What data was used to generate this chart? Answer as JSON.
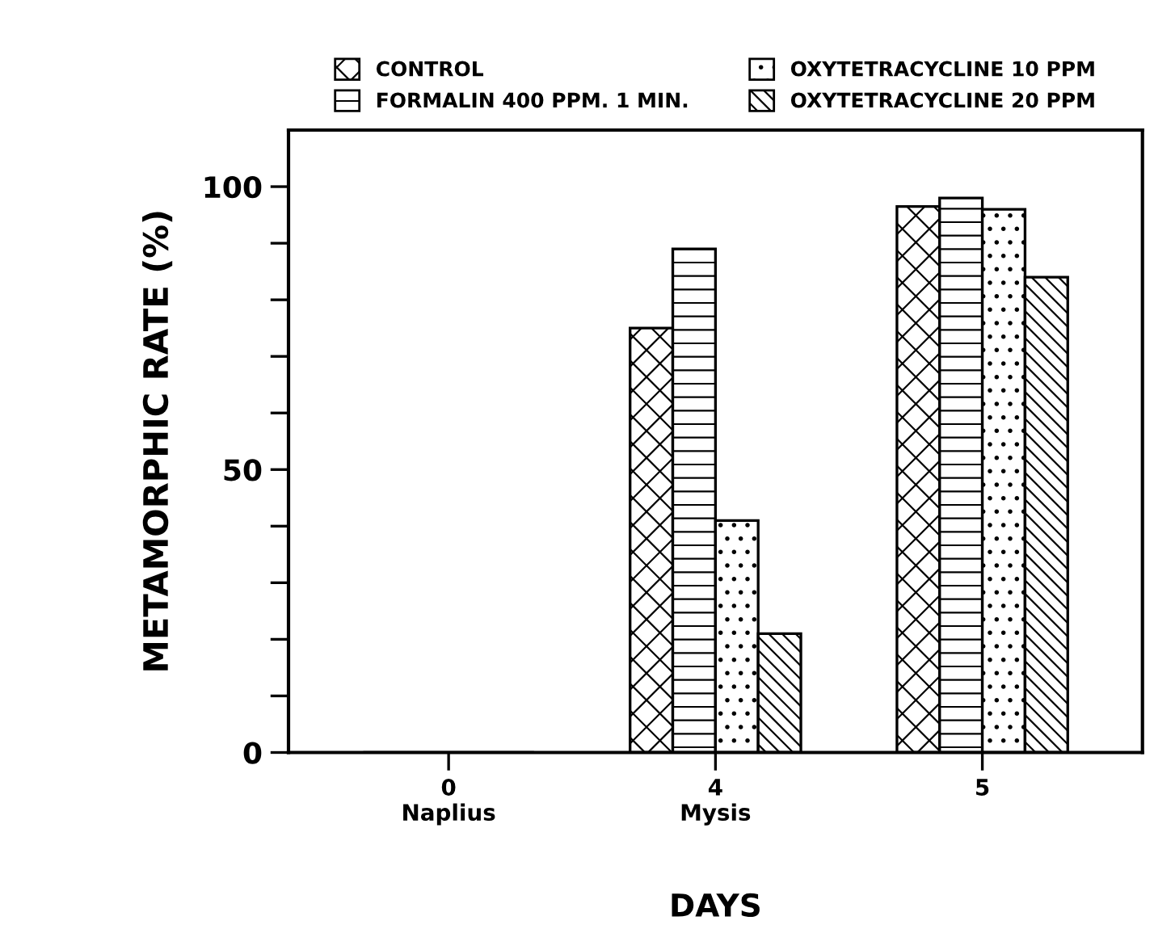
{
  "chart_data": {
    "type": "bar",
    "xlabel": "DAYS",
    "ylabel": "METAMORPHIC RATE (%)",
    "categories": [
      "0\nNaplius",
      "4\nMysis",
      "5"
    ],
    "series": [
      {
        "name": "CONTROL",
        "color": "#000000",
        "values": [
          0,
          75,
          96.5
        ]
      },
      {
        "name": "FORMALIN 400 PPM. 1 MIN.",
        "color": "#000000",
        "values": [
          0,
          89,
          98
        ]
      },
      {
        "name": "OXYTETRACYCLINE 10 PPM",
        "color": "#000000",
        "values": [
          0,
          41,
          96
        ]
      },
      {
        "name": "OXYTETRACYCLINE 20 PPM",
        "color": "#000000",
        "values": [
          0,
          21,
          84
        ]
      }
    ],
    "ylim": [
      0,
      110
    ],
    "yticks": [
      0,
      {
        "value": 10,
        "label": null
      },
      {
        "value": 20,
        "label": null
      },
      {
        "value": 30,
        "label": null
      },
      {
        "value": 40,
        "label": null
      },
      50,
      {
        "value": 60,
        "label": null
      },
      {
        "value": 70,
        "label": null
      },
      {
        "value": 80,
        "label": null
      },
      {
        "value": 90,
        "label": null
      },
      100
    ],
    "grid": false,
    "legend": "top"
  }
}
